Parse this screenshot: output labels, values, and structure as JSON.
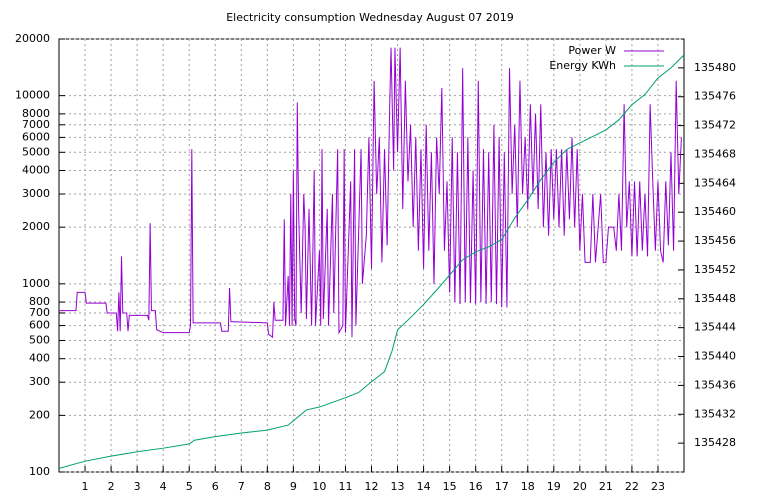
{
  "chart_data": {
    "type": "line",
    "title": "Electricity consumption Wednesday August 07 2019",
    "xlim": [
      0,
      24
    ],
    "xticks": [
      1,
      2,
      3,
      4,
      5,
      6,
      7,
      8,
      9,
      10,
      11,
      12,
      13,
      14,
      15,
      16,
      17,
      18,
      19,
      20,
      21,
      22,
      23
    ],
    "ylim": [
      100,
      20000
    ],
    "log_scale": true,
    "yticks": [
      100,
      200,
      300,
      400,
      500,
      600,
      700,
      800,
      1000,
      2000,
      3000,
      4000,
      5000,
      6000,
      7000,
      8000,
      10000,
      20000
    ],
    "y2lim": [
      135424,
      135484
    ],
    "y2ticks": [
      135428,
      135432,
      135436,
      135440,
      135444,
      135448,
      135452,
      135456,
      135460,
      135464,
      135468,
      135472,
      135476,
      135480
    ],
    "grid": true,
    "legend": "top-right",
    "series": [
      {
        "name": "Power W",
        "color": "#9400d3",
        "x": [
          0,
          0.65,
          0.7,
          1.0,
          1.05,
          1.8,
          1.85,
          2.2,
          2.25,
          2.3,
          2.35,
          2.4,
          2.45,
          2.6,
          2.65,
          2.7,
          3.4,
          3.45,
          3.5,
          3.55,
          3.7,
          3.75,
          4.0,
          5.0,
          5.05,
          5.1,
          5.15,
          6.2,
          6.25,
          6.5,
          6.55,
          6.6,
          8.0,
          8.05,
          8.2,
          8.25,
          8.3,
          8.6,
          8.65,
          8.7,
          8.8,
          8.85,
          8.9,
          8.95,
          9.0,
          9.05,
          9.1,
          9.15,
          9.2,
          9.3,
          9.4,
          9.45,
          9.5,
          9.6,
          9.7,
          9.8,
          9.85,
          10.0,
          10.05,
          10.1,
          10.15,
          10.3,
          10.35,
          10.5,
          10.55,
          10.7,
          10.75,
          10.9,
          10.95,
          11.0,
          11.2,
          11.25,
          11.35,
          11.4,
          11.6,
          11.65,
          11.8,
          11.9,
          12.0,
          12.1,
          12.2,
          12.3,
          12.4,
          12.5,
          12.6,
          12.7,
          12.75,
          12.85,
          12.9,
          13.0,
          13.1,
          13.2,
          13.3,
          13.4,
          13.5,
          13.6,
          13.7,
          13.8,
          13.9,
          14.0,
          14.1,
          14.2,
          14.3,
          14.4,
          14.5,
          14.6,
          14.7,
          14.8,
          14.9,
          15.0,
          15.1,
          15.2,
          15.3,
          15.4,
          15.5,
          15.6,
          15.7,
          15.8,
          15.9,
          16.0,
          16.1,
          16.2,
          16.3,
          16.4,
          16.5,
          16.6,
          16.7,
          16.8,
          16.9,
          17.0,
          17.1,
          17.2,
          17.3,
          17.4,
          17.5,
          17.6,
          17.7,
          17.8,
          17.9,
          18.0,
          18.1,
          18.2,
          18.3,
          18.4,
          18.5,
          18.6,
          18.7,
          18.8,
          18.9,
          19.0,
          19.1,
          19.2,
          19.3,
          19.4,
          19.5,
          19.6,
          19.7,
          19.8,
          19.9,
          20.0,
          20.1,
          20.2,
          20.4,
          20.5,
          20.6,
          20.8,
          20.9,
          21.0,
          21.1,
          21.3,
          21.4,
          21.5,
          21.6,
          21.7,
          21.8,
          21.9,
          22.0,
          22.1,
          22.2,
          22.3,
          22.4,
          22.5,
          22.6,
          22.7,
          22.8,
          22.9,
          23.0,
          23.1,
          23.2,
          23.3,
          23.4,
          23.5,
          23.6,
          23.7,
          23.8,
          23.9
        ],
        "values": [
          720,
          720,
          900,
          900,
          790,
          790,
          700,
          700,
          560,
          900,
          560,
          1400,
          700,
          700,
          560,
          680,
          680,
          640,
          2100,
          720,
          720,
          570,
          550,
          550,
          600,
          5200,
          620,
          620,
          560,
          560,
          950,
          630,
          620,
          540,
          520,
          800,
          640,
          640,
          2200,
          600,
          1100,
          600,
          3000,
          600,
          4000,
          650,
          600,
          9200,
          2500,
          700,
          3000,
          2000,
          650,
          2500,
          600,
          4000,
          600,
          1500,
          600,
          5200,
          650,
          2500,
          600,
          3000,
          700,
          5200,
          550,
          600,
          5200,
          550,
          3500,
          520,
          5200,
          600,
          5200,
          1000,
          1800,
          6000,
          1200,
          12000,
          3000,
          6000,
          1300,
          5200,
          1600,
          9000,
          18000,
          4000,
          18000,
          5000,
          18000,
          2500,
          12000,
          3500,
          7000,
          2000,
          6000,
          1500,
          5200,
          1200,
          7000,
          1500,
          5000,
          1000,
          6000,
          3000,
          11000,
          1500,
          3500,
          900,
          6000,
          800,
          5000,
          780,
          14000,
          800,
          6000,
          790,
          4000,
          780,
          12000,
          800,
          5200,
          780,
          5000,
          800,
          7000,
          780,
          6000,
          750,
          5000,
          750,
          14000,
          3000,
          7000,
          2000,
          12000,
          3000,
          6000,
          2500,
          9000,
          3000,
          8000,
          2500,
          9000,
          2000,
          5000,
          1800,
          5200,
          2200,
          5200,
          2000,
          5200,
          1800,
          5200,
          2200,
          6000,
          2000,
          5200,
          1500,
          3000,
          1300,
          1300,
          3000,
          1300,
          3000,
          1300,
          1300,
          2000,
          2000,
          1500,
          3000,
          1500,
          9000,
          2000,
          3500,
          1400,
          3500,
          1400,
          3500,
          1500,
          3000,
          1400,
          9000,
          3500,
          1500,
          3500,
          1500,
          1300,
          3500,
          1600,
          5000,
          1500,
          12000,
          3000,
          6000
        ]
      },
      {
        "name": "Energy KWh",
        "color": "#009e73",
        "axis": "y2",
        "x": [
          0,
          1,
          2,
          3,
          4,
          5,
          5.2,
          6,
          7,
          8,
          8.8,
          9.5,
          10,
          11,
          11.5,
          12,
          12.5,
          12.8,
          13,
          13.5,
          14,
          14.5,
          15,
          15.5,
          16,
          16.5,
          17,
          17.5,
          18,
          18.5,
          19,
          19.5,
          20,
          20.5,
          21,
          21.5,
          22,
          22.5,
          23,
          23.5,
          24
        ],
        "values": [
          135424.5,
          135425.5,
          135426.2,
          135426.8,
          135427.3,
          135427.9,
          135428.4,
          135428.9,
          135429.4,
          135429.8,
          135430.5,
          135432.6,
          135433,
          135434.3,
          135435,
          135436.5,
          135437.9,
          135440.9,
          135443.7,
          135445.4,
          135447.2,
          135449.2,
          135451.3,
          135453.4,
          135454.5,
          135455.2,
          135456.2,
          135459.2,
          135461.7,
          135464.5,
          135466.9,
          135468.7,
          135469.6,
          135470.5,
          135471.4,
          135472.8,
          135474.9,
          135476.3,
          135478.6,
          135480,
          135481.8
        ]
      }
    ]
  }
}
